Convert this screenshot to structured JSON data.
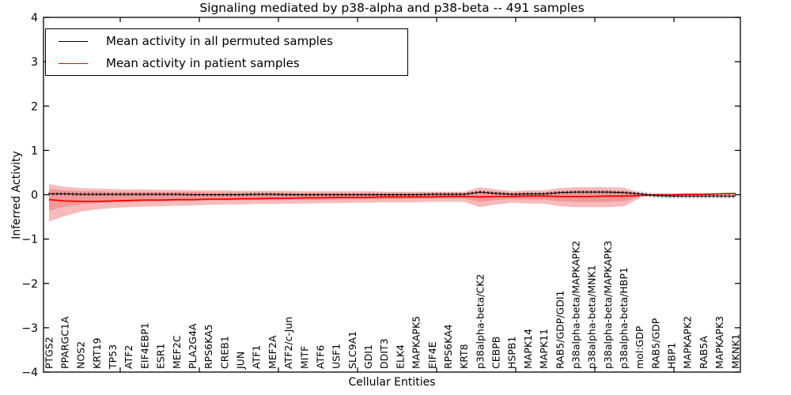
{
  "chart_data": {
    "type": "line",
    "title": "Signaling mediated by p38-alpha and p38-beta -- 491 samples",
    "xlabel": "Cellular Entities",
    "ylabel": "Inferred Activity",
    "ylim": [
      -4,
      4
    ],
    "yticks": [
      "4",
      "3",
      "2",
      "1",
      "0",
      "−1",
      "−2",
      "−3",
      "−4"
    ],
    "grid": false,
    "legend_position": "upper left",
    "categories": [
      "PTGS2",
      "PPARGC1A",
      "NOS2",
      "KRT19",
      "TP53",
      "ATF2",
      "EIF4EBP1",
      "ESR1",
      "MEF2C",
      "PLA2G4A",
      "RPS6KA5",
      "CREB1",
      "JUN",
      "ATF1",
      "MEF2A",
      "ATF2/c-Jun",
      "MITF",
      "ATF6",
      "USF1",
      "SLC9A1",
      "GDI1",
      "DDIT3",
      "ELK4",
      "MAPKAPK5",
      "EIF4E",
      "RPS6KA4",
      "KRT8",
      "p38alpha-beta/CK2",
      "CEBPB",
      "HSPB1",
      "MAPK14",
      "MAPK11",
      "RAB5/GDP/GDI1",
      "p38alpha-beta/MAPKAPK2",
      "p38alpha-beta/MNK1",
      "p38alpha-beta/MAPKAPK3",
      "p38alpha-beta/HBP1",
      "mol:GDP",
      "RAB5/GDP",
      "HBP1",
      "MAPKAPK2",
      "RAB5A",
      "MAPKAPK3",
      "MKNK1"
    ],
    "series": [
      {
        "name": "Mean activity in all permuted samples",
        "color": "#000000",
        "style": "solid-with-tick-texture",
        "values": [
          0.02,
          0.02,
          0.01,
          0.01,
          0.01,
          0.01,
          0.01,
          0.01,
          0.01,
          0.0,
          0.0,
          0.0,
          0.0,
          0.01,
          0.01,
          0.0,
          0.0,
          0.0,
          0.0,
          0.0,
          0.0,
          0.0,
          0.0,
          0.0,
          0.01,
          0.01,
          0.01,
          0.06,
          0.03,
          0.01,
          0.02,
          0.02,
          0.05,
          0.06,
          0.06,
          0.06,
          0.05,
          0.02,
          -0.02,
          -0.03,
          -0.03,
          -0.03,
          -0.03,
          -0.03
        ]
      },
      {
        "name": "Mean activity in patient samples",
        "color": "#ff0000",
        "style": "solid",
        "values": [
          -0.11,
          -0.14,
          -0.15,
          -0.15,
          -0.14,
          -0.13,
          -0.12,
          -0.12,
          -0.11,
          -0.11,
          -0.1,
          -0.1,
          -0.09,
          -0.09,
          -0.08,
          -0.08,
          -0.07,
          -0.07,
          -0.06,
          -0.06,
          -0.06,
          -0.05,
          -0.05,
          -0.05,
          -0.05,
          -0.04,
          -0.04,
          -0.05,
          -0.04,
          -0.04,
          -0.03,
          -0.03,
          -0.04,
          -0.04,
          -0.04,
          -0.03,
          -0.03,
          -0.02,
          0.0,
          0.0,
          0.01,
          0.01,
          0.02,
          0.03
        ]
      }
    ],
    "bands": [
      {
        "name": "permuted-samples-std-band",
        "color": "#dedede",
        "lower": [
          -0.04,
          -0.04,
          -0.05,
          -0.05,
          -0.05,
          -0.05,
          -0.05,
          -0.05,
          -0.05,
          -0.06,
          -0.06,
          -0.06,
          -0.06,
          -0.05,
          -0.05,
          -0.06,
          -0.06,
          -0.06,
          -0.06,
          -0.06,
          -0.06,
          -0.06,
          -0.06,
          -0.06,
          -0.05,
          -0.05,
          -0.05,
          0.0,
          -0.03,
          -0.05,
          -0.04,
          -0.04,
          -0.01,
          0.0,
          0.0,
          0.0,
          -0.01,
          -0.04,
          -0.08,
          -0.09,
          -0.09,
          -0.09,
          -0.09,
          -0.09
        ],
        "upper": [
          0.08,
          0.08,
          0.07,
          0.07,
          0.07,
          0.07,
          0.07,
          0.07,
          0.07,
          0.06,
          0.06,
          0.06,
          0.06,
          0.07,
          0.07,
          0.06,
          0.06,
          0.06,
          0.06,
          0.06,
          0.06,
          0.06,
          0.06,
          0.06,
          0.07,
          0.07,
          0.07,
          0.12,
          0.09,
          0.07,
          0.08,
          0.08,
          0.11,
          0.12,
          0.12,
          0.12,
          0.11,
          0.08,
          0.04,
          0.03,
          0.03,
          0.03,
          0.03,
          0.03
        ]
      },
      {
        "name": "patient-samples-std-band-outer",
        "color": "#f7b4b4",
        "lower": [
          -0.6,
          -0.48,
          -0.38,
          -0.33,
          -0.3,
          -0.28,
          -0.27,
          -0.26,
          -0.25,
          -0.24,
          -0.23,
          -0.22,
          -0.22,
          -0.21,
          -0.21,
          -0.2,
          -0.2,
          -0.19,
          -0.19,
          -0.18,
          -0.18,
          -0.17,
          -0.17,
          -0.17,
          -0.16,
          -0.16,
          -0.16,
          -0.28,
          -0.22,
          -0.18,
          -0.2,
          -0.2,
          -0.26,
          -0.28,
          -0.28,
          -0.28,
          -0.26,
          -0.08,
          null,
          null,
          null,
          null,
          null,
          null
        ],
        "upper": [
          0.24,
          0.18,
          0.15,
          0.14,
          0.13,
          0.12,
          0.12,
          0.11,
          0.11,
          0.1,
          0.1,
          0.1,
          0.09,
          0.09,
          0.09,
          0.09,
          0.08,
          0.08,
          0.08,
          0.08,
          0.08,
          0.07,
          0.07,
          0.07,
          0.07,
          0.07,
          0.07,
          0.17,
          0.12,
          0.08,
          0.1,
          0.1,
          0.15,
          0.17,
          0.17,
          0.17,
          0.16,
          0.04,
          null,
          null,
          null,
          null,
          null,
          null
        ]
      },
      {
        "name": "patient-samples-std-band-inner",
        "color": "#f09595",
        "lower": [
          -0.36,
          -0.27,
          -0.22,
          -0.19,
          -0.17,
          -0.16,
          -0.15,
          -0.15,
          -0.14,
          -0.14,
          -0.13,
          -0.13,
          -0.12,
          -0.12,
          -0.12,
          -0.11,
          -0.11,
          -0.11,
          -0.11,
          -0.1,
          -0.1,
          -0.1,
          -0.1,
          -0.09,
          -0.09,
          -0.09,
          -0.09,
          -0.16,
          -0.12,
          -0.1,
          -0.11,
          -0.11,
          -0.15,
          -0.16,
          -0.16,
          -0.16,
          -0.15,
          -0.05,
          null,
          null,
          null,
          null,
          null,
          null
        ],
        "upper": [
          0.13,
          0.1,
          0.08,
          0.08,
          0.07,
          0.07,
          0.06,
          0.06,
          0.06,
          0.06,
          0.05,
          0.05,
          0.05,
          0.05,
          0.05,
          0.05,
          0.04,
          0.04,
          0.04,
          0.04,
          0.04,
          0.04,
          0.04,
          0.04,
          0.04,
          0.04,
          0.04,
          0.09,
          0.07,
          0.04,
          0.05,
          0.05,
          0.08,
          0.09,
          0.09,
          0.09,
          0.08,
          0.02,
          null,
          null,
          null,
          null,
          null,
          null
        ]
      }
    ]
  }
}
